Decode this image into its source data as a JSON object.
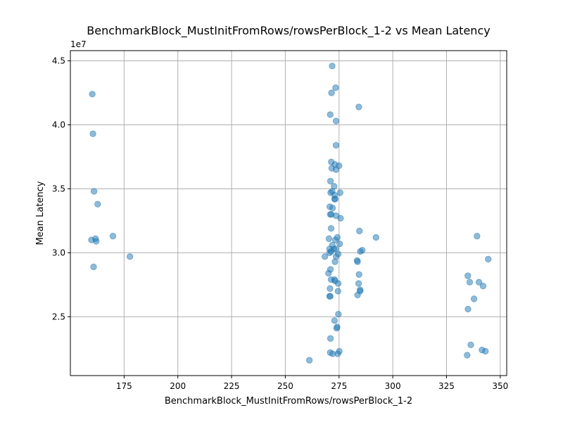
{
  "chart_data": {
    "type": "scatter",
    "title": "BenchmarkBlock_MustInitFromRows/rowsPerBlock_1-2 vs Mean Latency",
    "xlabel": "BenchmarkBlock_MustInitFromRows/rowsPerBlock_1-2",
    "ylabel": "Mean Latency",
    "y_offset_label": "1e7",
    "xlim": [
      150,
      353
    ],
    "ylim": [
      20400000,
      45800000
    ],
    "x_ticks": [
      175,
      200,
      225,
      250,
      275,
      300,
      325,
      350
    ],
    "y_ticks": [
      25000000,
      30000000,
      35000000,
      40000000,
      45000000
    ],
    "y_tick_labels": [
      "2.5",
      "3.0",
      "3.5",
      "4.0",
      "4.5"
    ],
    "grid": true,
    "marker_color": "#1f77b4",
    "marker_alpha": 0.5,
    "points": [
      [
        160.2,
        42400000
      ],
      [
        160.5,
        39300000
      ],
      [
        161.0,
        34800000
      ],
      [
        162.7,
        33800000
      ],
      [
        159.8,
        31000000
      ],
      [
        161.7,
        31100000
      ],
      [
        162.0,
        30900000
      ],
      [
        169.8,
        31300000
      ],
      [
        160.8,
        28900000
      ],
      [
        177.7,
        29700000
      ],
      [
        271.8,
        44600000
      ],
      [
        273.4,
        42900000
      ],
      [
        271.5,
        42500000
      ],
      [
        284.2,
        41400000
      ],
      [
        270.9,
        40800000
      ],
      [
        273.6,
        40300000
      ],
      [
        273.6,
        38400000
      ],
      [
        271.4,
        37100000
      ],
      [
        273.1,
        36900000
      ],
      [
        275.0,
        36800000
      ],
      [
        271.6,
        36600000
      ],
      [
        273.6,
        36500000
      ],
      [
        271.0,
        35600000
      ],
      [
        272.7,
        35200000
      ],
      [
        271.1,
        34700000
      ],
      [
        271.8,
        34800000
      ],
      [
        275.5,
        34700000
      ],
      [
        273.0,
        34500000
      ],
      [
        273.2,
        34200000
      ],
      [
        272.9,
        34200000
      ],
      [
        270.7,
        33600000
      ],
      [
        272.0,
        33500000
      ],
      [
        270.9,
        33000000
      ],
      [
        271.4,
        33000000
      ],
      [
        273.6,
        32900000
      ],
      [
        275.7,
        32700000
      ],
      [
        271.3,
        31900000
      ],
      [
        284.5,
        31700000
      ],
      [
        292.2,
        31200000
      ],
      [
        270.3,
        31100000
      ],
      [
        274.2,
        31200000
      ],
      [
        273.3,
        31000000
      ],
      [
        271.9,
        30600000
      ],
      [
        272.6,
        30300000
      ],
      [
        275.3,
        30700000
      ],
      [
        270.6,
        30300000
      ],
      [
        271.3,
        30100000
      ],
      [
        273.5,
        30300000
      ],
      [
        270.6,
        30000000
      ],
      [
        274.6,
        29900000
      ],
      [
        273.6,
        29700000
      ],
      [
        268.4,
        29700000
      ],
      [
        285.8,
        30200000
      ],
      [
        284.9,
        30100000
      ],
      [
        283.4,
        29400000
      ],
      [
        283.6,
        29300000
      ],
      [
        273.1,
        29300000
      ],
      [
        271.0,
        28700000
      ],
      [
        270.1,
        28400000
      ],
      [
        284.3,
        28300000
      ],
      [
        271.3,
        27900000
      ],
      [
        273.1,
        27800000
      ],
      [
        272.9,
        27900000
      ],
      [
        274.6,
        27600000
      ],
      [
        284.1,
        27600000
      ],
      [
        270.8,
        27200000
      ],
      [
        284.8,
        27100000
      ],
      [
        274.5,
        27000000
      ],
      [
        284.8,
        27000000
      ],
      [
        270.6,
        26600000
      ],
      [
        270.9,
        26600000
      ],
      [
        283.6,
        26700000
      ],
      [
        274.7,
        25200000
      ],
      [
        272.9,
        24700000
      ],
      [
        274.1,
        24200000
      ],
      [
        273.9,
        24100000
      ],
      [
        271.0,
        23300000
      ],
      [
        270.9,
        22200000
      ],
      [
        275.1,
        22300000
      ],
      [
        272.0,
        22100000
      ],
      [
        274.4,
        22100000
      ],
      [
        261.2,
        21600000
      ],
      [
        339.2,
        31300000
      ],
      [
        344.4,
        29500000
      ],
      [
        334.9,
        28200000
      ],
      [
        335.8,
        27700000
      ],
      [
        340.1,
        27700000
      ],
      [
        342.0,
        27400000
      ],
      [
        337.8,
        26400000
      ],
      [
        335.0,
        25600000
      ],
      [
        336.3,
        22800000
      ],
      [
        341.5,
        22400000
      ],
      [
        343.1,
        22300000
      ],
      [
        334.6,
        22000000
      ]
    ]
  }
}
